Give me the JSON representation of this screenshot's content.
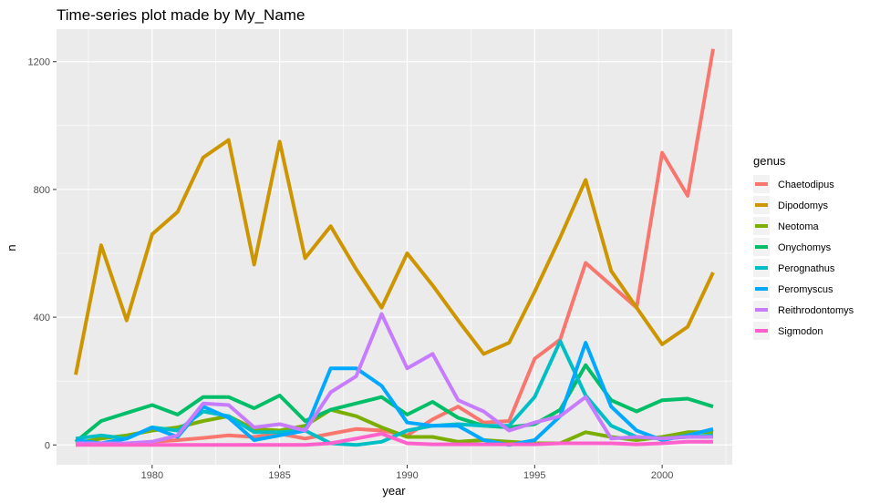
{
  "chart_data": {
    "type": "line",
    "title": "Time-series plot made by My_Name",
    "xlabel": "year",
    "ylabel": "n",
    "xlim": [
      1976.25,
      2002.75
    ],
    "ylim": [
      -62,
      1302
    ],
    "x_ticks": [
      1980,
      1985,
      1990,
      1995,
      2000
    ],
    "y_ticks": [
      0,
      400,
      800,
      1200
    ],
    "grid": true,
    "legend": {
      "title": "genus",
      "position": "right"
    },
    "x": [
      1977,
      1978,
      1979,
      1980,
      1981,
      1982,
      1983,
      1984,
      1985,
      1986,
      1987,
      1988,
      1989,
      1990,
      1991,
      1992,
      1993,
      1994,
      1995,
      1996,
      1997,
      1998,
      1999,
      2000,
      2001,
      2002
    ],
    "series": [
      {
        "name": "Chaetodipus",
        "color": "#F8766D",
        "values": [
          3,
          5,
          4,
          10,
          15,
          22,
          30,
          25,
          35,
          20,
          35,
          50,
          45,
          30,
          80,
          120,
          70,
          75,
          270,
          330,
          570,
          500,
          430,
          915,
          780,
          1240
        ]
      },
      {
        "name": "Dipodomys",
        "color": "#CD9600",
        "values": [
          220,
          625,
          390,
          660,
          730,
          900,
          955,
          565,
          950,
          585,
          685,
          550,
          430,
          600,
          500,
          390,
          285,
          320,
          480,
          650,
          830,
          545,
          430,
          315,
          370,
          540
        ]
      },
      {
        "name": "Neotoma",
        "color": "#7CAE00",
        "values": [
          5,
          20,
          30,
          45,
          55,
          75,
          90,
          50,
          45,
          60,
          110,
          90,
          55,
          25,
          25,
          10,
          15,
          10,
          5,
          5,
          40,
          25,
          15,
          25,
          40,
          40
        ]
      },
      {
        "name": "Onychomys",
        "color": "#00BE67",
        "values": [
          10,
          75,
          100,
          125,
          95,
          150,
          150,
          115,
          155,
          75,
          110,
          130,
          150,
          95,
          135,
          85,
          60,
          55,
          65,
          110,
          250,
          140,
          105,
          140,
          145,
          120
        ]
      },
      {
        "name": "Perognathus",
        "color": "#00BFC4",
        "values": [
          20,
          30,
          20,
          55,
          45,
          105,
          90,
          40,
          40,
          45,
          5,
          0,
          10,
          45,
          60,
          65,
          60,
          60,
          150,
          325,
          155,
          60,
          25,
          20,
          25,
          30
        ]
      },
      {
        "name": "Peromyscus",
        "color": "#00A9FF",
        "values": [
          15,
          5,
          20,
          55,
          25,
          120,
          85,
          15,
          30,
          45,
          240,
          240,
          185,
          70,
          60,
          60,
          15,
          0,
          15,
          90,
          320,
          120,
          45,
          15,
          30,
          50
        ]
      },
      {
        "name": "Reithrodontomys",
        "color": "#C77CFF",
        "values": [
          5,
          5,
          5,
          10,
          30,
          130,
          125,
          55,
          65,
          45,
          165,
          215,
          410,
          240,
          285,
          140,
          105,
          45,
          70,
          90,
          150,
          20,
          25,
          20,
          25,
          25
        ]
      },
      {
        "name": "Sigmodon",
        "color": "#FF61CC",
        "values": [
          0,
          0,
          0,
          0,
          0,
          0,
          0,
          0,
          0,
          0,
          5,
          20,
          35,
          5,
          2,
          2,
          2,
          2,
          2,
          5,
          5,
          5,
          2,
          5,
          10,
          10
        ]
      }
    ]
  }
}
